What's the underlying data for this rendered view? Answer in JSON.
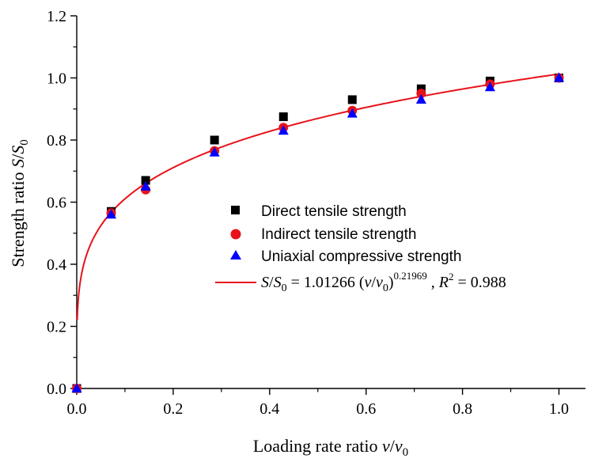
{
  "chart_data": {
    "type": "scatter",
    "title": "",
    "xlabel": {
      "main": "Loading rate ratio ",
      "var": "v",
      "slash": "/",
      "var2": "v",
      "sub": "0"
    },
    "ylabel": {
      "main": "Strength ratio ",
      "var": "S",
      "slash": "/",
      "var2": "S",
      "sub": "0"
    },
    "xlim": [
      0.0,
      1.1
    ],
    "ylim": [
      0.0,
      1.2
    ],
    "xticks": [
      0.0,
      0.2,
      0.4,
      0.6,
      0.8,
      1.0
    ],
    "xtick_labels": [
      "0.0",
      "0.2",
      "0.4",
      "0.6",
      "0.8",
      "1.0"
    ],
    "yticks": [
      0.0,
      0.2,
      0.4,
      0.6,
      0.8,
      1.0,
      1.2
    ],
    "ytick_labels": [
      "0.0",
      "0.2",
      "0.4",
      "0.6",
      "0.8",
      "1.0",
      "1.2"
    ],
    "grid": false,
    "legend_position": "center-right",
    "series": [
      {
        "name": "Direct tensile strength",
        "marker": "square",
        "color": "#000000",
        "x": [
          0.0,
          0.0714,
          0.1429,
          0.2857,
          0.4286,
          0.5714,
          0.7143,
          0.8571,
          1.0
        ],
        "y": [
          0.0,
          0.57,
          0.67,
          0.8,
          0.875,
          0.93,
          0.965,
          0.99,
          1.0
        ]
      },
      {
        "name": "Indirect tensile strength",
        "marker": "circle",
        "color": "#e8121a",
        "x": [
          0.0,
          0.0714,
          0.1429,
          0.2857,
          0.4286,
          0.5714,
          0.7143,
          0.8571,
          1.0
        ],
        "y": [
          0.0,
          0.565,
          0.64,
          0.765,
          0.84,
          0.895,
          0.95,
          0.98,
          1.0
        ]
      },
      {
        "name": "Uniaxial compressive strength",
        "marker": "triangle",
        "color": "#0000ff",
        "x": [
          0.0,
          0.0714,
          0.1429,
          0.2857,
          0.4286,
          0.5714,
          0.7143,
          0.8571,
          1.0
        ],
        "y": [
          0.0,
          0.56,
          0.65,
          0.76,
          0.83,
          0.885,
          0.93,
          0.97,
          1.0
        ]
      }
    ],
    "fit": {
      "color": "#e8121a",
      "coefficient": 1.01266,
      "exponent": 0.21969,
      "x_range": [
        0.001,
        1.0
      ],
      "label": {
        "lhs_var": "S",
        "lhs_slash": "/",
        "lhs_var2": "S",
        "lhs_sub": "0",
        "equals": " = 1.01266 (",
        "v_var": "v",
        "v_slash": "/",
        "v_var2": "v",
        "v_sub": "0",
        "close": ")",
        "exp": "0.21969",
        "sep": " , ",
        "r_var": "R",
        "r_sup": "2",
        "r_value": " = 0.988"
      }
    }
  }
}
